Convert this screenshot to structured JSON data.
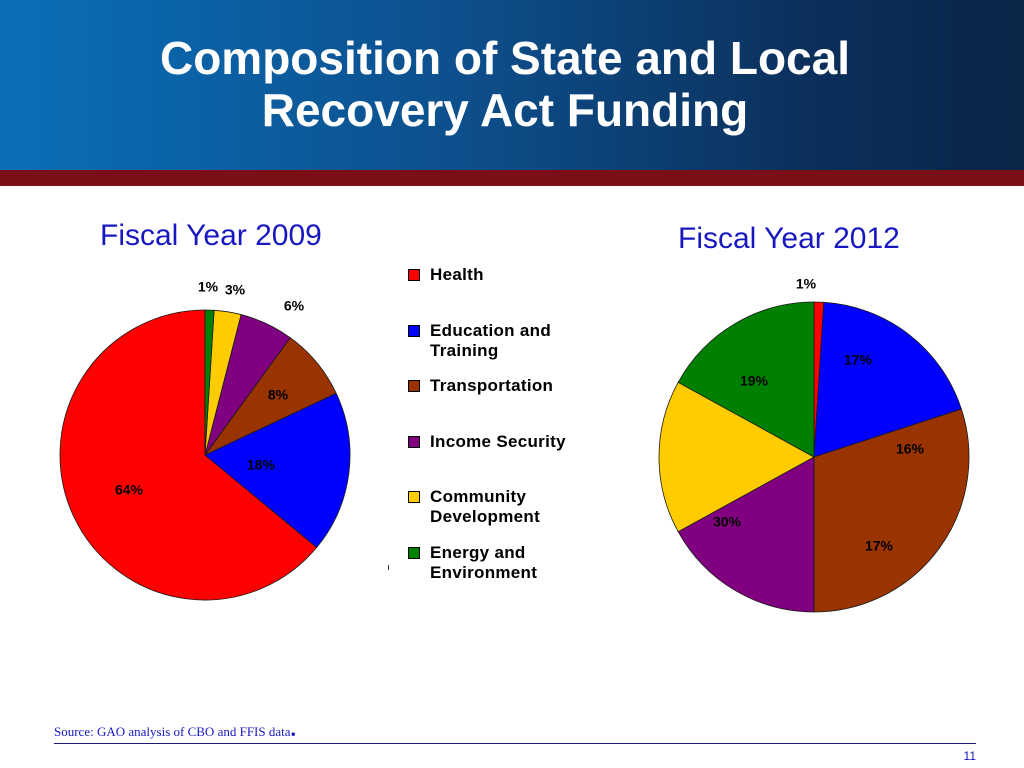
{
  "slide": {
    "title_line1": "Composition of State and Local",
    "title_line2": "Recovery Act Funding",
    "source": "Source: GAO analysis of CBO and FFIS data",
    "source_dot": ".",
    "page_number": "11",
    "colors": {
      "header_blue": "#0d4f8c",
      "maroon": "#7a0f17",
      "subtitle_blue": "#1818c0"
    }
  },
  "legend": [
    {
      "label_line1": "Health",
      "label_line2": "",
      "color": "#ff0000"
    },
    {
      "label_line1": "Education and",
      "label_line2": "Training",
      "color": "#0000ff"
    },
    {
      "label_line1": "Transportation",
      "label_line2": "",
      "color": "#993300"
    },
    {
      "label_line1": "Income Security",
      "label_line2": "",
      "color": "#800080"
    },
    {
      "label_line1": "Community",
      "label_line2": "Development",
      "color": "#ffcc00"
    },
    {
      "label_line1": "Energy and",
      "label_line2": "Environment",
      "color": "#008000"
    }
  ],
  "chart_data": [
    {
      "type": "pie",
      "title": "Fiscal Year 2009",
      "categories": [
        "Health",
        "Education and Training",
        "Transportation",
        "Income Security",
        "Community Development",
        "Energy and Environment"
      ],
      "values": [
        64,
        18,
        8,
        6,
        3,
        1
      ],
      "labels": [
        "64%",
        "18%",
        "8%",
        "6%",
        "3%",
        "1%"
      ],
      "colors": [
        "#ff0000",
        "#0000ff",
        "#993300",
        "#800080",
        "#ffcc00",
        "#008000"
      ]
    },
    {
      "type": "pie",
      "title": "Fiscal Year 2012",
      "categories": [
        "Health",
        "Education and Training",
        "Transportation",
        "Income Security",
        "Community Development",
        "Energy and Environment"
      ],
      "values": [
        1,
        19,
        30,
        17,
        16,
        17
      ],
      "labels": [
        "1%",
        "19%",
        "30%",
        "17%",
        "16%",
        "17%"
      ],
      "colors": [
        "#ff0000",
        "#0000ff",
        "#993300",
        "#800080",
        "#ffcc00",
        "#008000"
      ]
    }
  ]
}
